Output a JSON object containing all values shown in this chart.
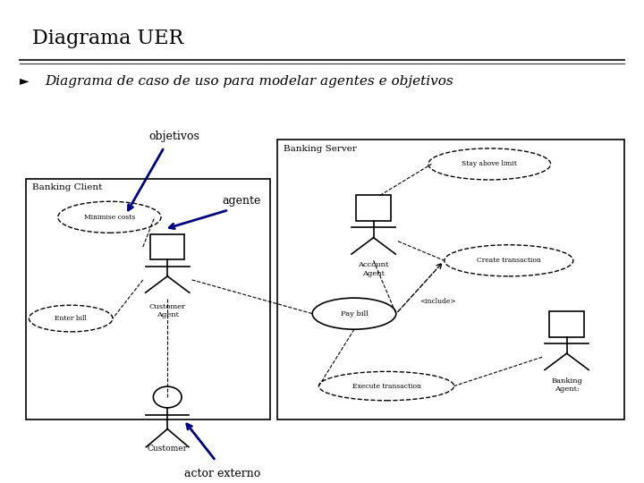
{
  "title": "Diagrama UER",
  "subtitle": "Diagrama de caso de uso para modelar agentes e objetivos",
  "bg_color": "#ffffff",
  "title_color": "#000000",
  "subtitle_color": "#000000",
  "arrow_color": "#000080",
  "labels": {
    "banking_client": "Banking Client",
    "banking_server": "Banking Server",
    "minimize_costs": "Minimise costs",
    "customer_agent": "Customer\nAgent",
    "enter_bill": "Enter bill",
    "pay_bill": "Pay bill",
    "account_agent": "Account\nAgent",
    "create_transaction": "Create transaction",
    "stay_above_limit": "Stay above limit",
    "execute_transaction": "Execute transaction",
    "banking_agent": "Banking\nAgent:",
    "customer": "Customer",
    "objetivos": "objetivos",
    "agente": "agente",
    "actor_externo": "actor externo",
    "include": "<include>"
  }
}
